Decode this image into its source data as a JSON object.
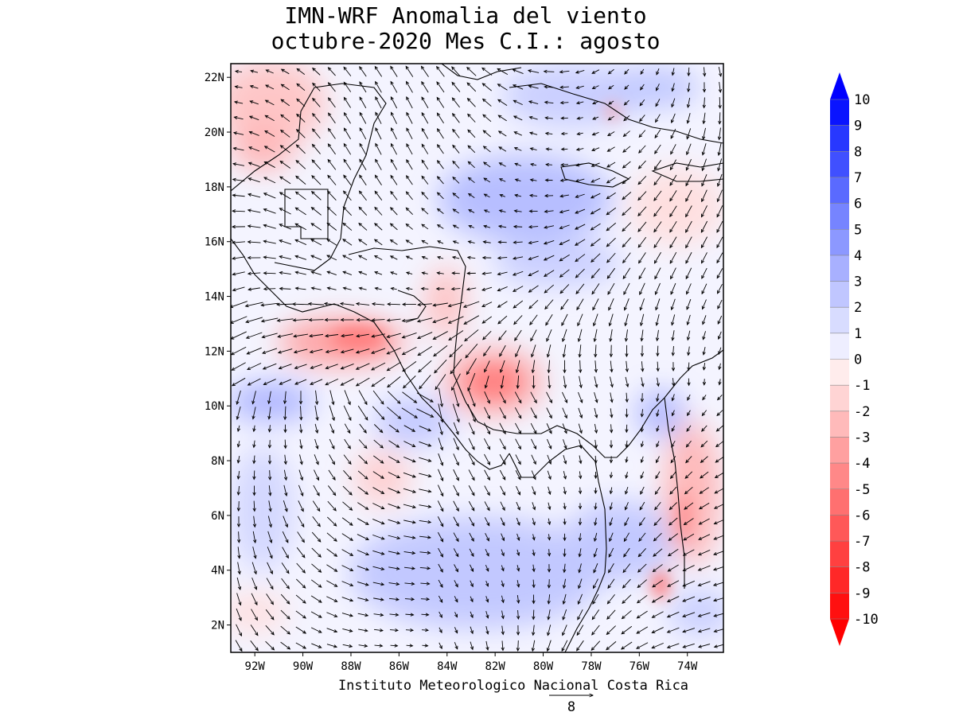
{
  "title": {
    "line1": "IMN-WRF Anomalia del viento",
    "line2": "octubre-2020 Mes C.I.: agosto"
  },
  "credit": "Instituto Meteorologico Nacional Costa Rica",
  "map": {
    "lat_range": [
      1,
      22.5
    ],
    "lon_range": [
      -93,
      -72.5
    ],
    "lat_ticks": [
      "22N",
      "20N",
      "18N",
      "16N",
      "14N",
      "12N",
      "10N",
      "8N",
      "6N",
      "4N",
      "2N"
    ],
    "lat_values": [
      22,
      20,
      18,
      16,
      14,
      12,
      10,
      8,
      6,
      4,
      2
    ],
    "lon_ticks": [
      "92W",
      "90W",
      "88W",
      "86W",
      "84W",
      "82W",
      "80W",
      "78W",
      "76W",
      "74W"
    ],
    "lon_values": [
      -92,
      -90,
      -88,
      -86,
      -84,
      -82,
      -80,
      -78,
      -76,
      -74
    ]
  },
  "reference_vector": {
    "value": "8"
  },
  "colorbar": {
    "labels": [
      "10",
      "9",
      "8",
      "7",
      "6",
      "5",
      "4",
      "3",
      "2",
      "1",
      "0",
      "-1",
      "-2",
      "-3",
      "-4",
      "-5",
      "-6",
      "-7",
      "-8",
      "-9",
      "-10"
    ],
    "colors": [
      "#0a14ff",
      "#2838ff",
      "#4050ff",
      "#5a6aff",
      "#7684ff",
      "#8c98ff",
      "#a8b0ff",
      "#c0c6ff",
      "#d8dcff",
      "#eeeeff",
      "#ffecec",
      "#ffd4d4",
      "#ffbaba",
      "#ffa0a0",
      "#ff8888",
      "#ff7070",
      "#ff5858",
      "#ff4040",
      "#ff2828",
      "#ff1010"
    ],
    "top_arrow_color": "#0000ff",
    "bottom_arrow_color": "#ff0000"
  }
}
